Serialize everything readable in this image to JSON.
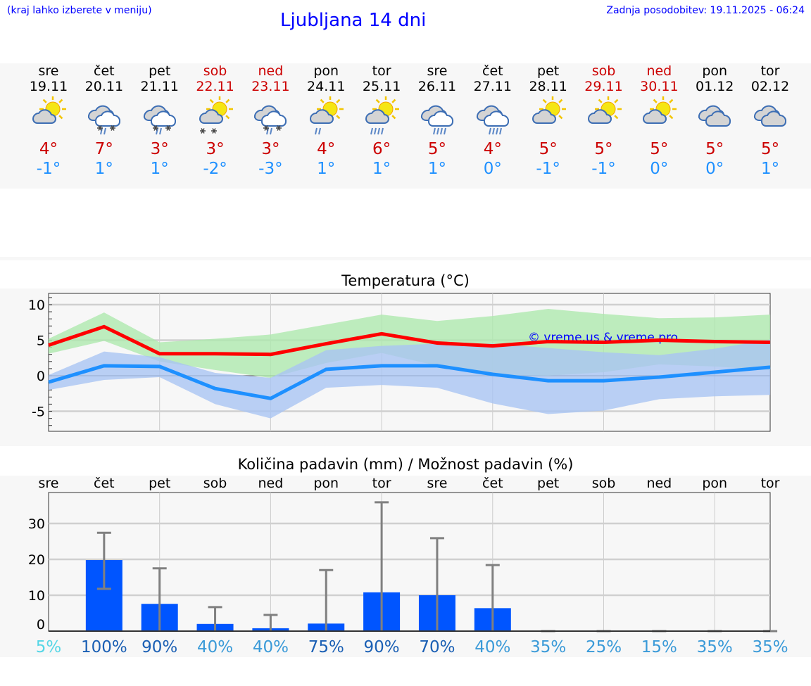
{
  "header": {
    "note": "(kraj lahko izberete v meniju)",
    "title": "Ljubljana 14 dni",
    "updated": "Zadnja posodobitev: 19.11.2025 - 06:24"
  },
  "days": [
    {
      "name": "sre",
      "date": "19.11",
      "weekend": false,
      "icon": "sun-cloud",
      "max": "4°",
      "min": "-1°"
    },
    {
      "name": "čet",
      "date": "20.11",
      "weekend": false,
      "icon": "clouds-rain-snow",
      "max": "7°",
      "min": "1°"
    },
    {
      "name": "pet",
      "date": "21.11",
      "weekend": false,
      "icon": "clouds-rain-snow",
      "max": "3°",
      "min": "1°"
    },
    {
      "name": "sob",
      "date": "22.11",
      "weekend": true,
      "icon": "sun-cloud-snow",
      "max": "3°",
      "min": "-2°"
    },
    {
      "name": "ned",
      "date": "23.11",
      "weekend": true,
      "icon": "clouds-rain-snow",
      "max": "3°",
      "min": "-3°"
    },
    {
      "name": "pon",
      "date": "24.11",
      "weekend": false,
      "icon": "sun-cloud-rain",
      "max": "4°",
      "min": "1°"
    },
    {
      "name": "tor",
      "date": "25.11",
      "weekend": false,
      "icon": "sun-cloud-heavy-rain",
      "max": "6°",
      "min": "1°"
    },
    {
      "name": "sre",
      "date": "26.11",
      "weekend": false,
      "icon": "clouds-rain",
      "max": "5°",
      "min": "1°"
    },
    {
      "name": "čet",
      "date": "27.11",
      "weekend": false,
      "icon": "clouds-rain",
      "max": "4°",
      "min": "0°"
    },
    {
      "name": "pet",
      "date": "28.11",
      "weekend": false,
      "icon": "sun-cloud",
      "max": "5°",
      "min": "-1°"
    },
    {
      "name": "sob",
      "date": "29.11",
      "weekend": true,
      "icon": "sun-cloud",
      "max": "5°",
      "min": "-1°"
    },
    {
      "name": "ned",
      "date": "30.11",
      "weekend": true,
      "icon": "sun-cloud",
      "max": "5°",
      "min": "0°"
    },
    {
      "name": "pon",
      "date": "01.12",
      "weekend": false,
      "icon": "clouds",
      "max": "5°",
      "min": "0°"
    },
    {
      "name": "tor",
      "date": "02.12",
      "weekend": false,
      "icon": "clouds",
      "max": "5°",
      "min": "1°"
    }
  ],
  "colors": {
    "max": "#ff0000",
    "min": "#1e90ff",
    "max_band": "#aee8ae",
    "min_band": "#a9c4f2",
    "bar": "#0055ff",
    "error": "#808080"
  },
  "chart_data": [
    {
      "type": "line",
      "title": "Temperatura (°C)",
      "ylim": [
        -7.8,
        11.6
      ],
      "yticks": [
        "10",
        "5",
        "0",
        "-5"
      ],
      "ytick_values": [
        10,
        5,
        0,
        -5
      ],
      "watermark": "© vreme.us & vreme.pro",
      "series": [
        {
          "name": "max",
          "values": [
            4.3,
            6.9,
            3.1,
            3.1,
            3.0,
            4.5,
            5.9,
            4.6,
            4.2,
            4.8,
            4.7,
            5.0,
            4.8,
            4.7
          ],
          "band_low": [
            3.1,
            4.9,
            2.0,
            0.8,
            -0.3,
            1.8,
            3.2,
            1.4,
            0.1,
            0.0,
            0.5,
            1.6,
            1.3,
            0.8
          ],
          "band_high": [
            5.2,
            8.9,
            4.7,
            5.2,
            5.8,
            7.2,
            8.6,
            7.7,
            8.4,
            9.4,
            8.7,
            8.1,
            8.2,
            8.6
          ]
        },
        {
          "name": "min",
          "values": [
            -0.9,
            1.4,
            1.3,
            -1.8,
            -3.2,
            0.9,
            1.4,
            1.4,
            0.2,
            -0.7,
            -0.7,
            -0.2,
            0.5,
            1.2
          ],
          "band_low": [
            -2.0,
            -0.6,
            -0.2,
            -4.0,
            -6.0,
            -1.7,
            -1.3,
            -1.7,
            -3.9,
            -5.4,
            -4.9,
            -3.3,
            -2.9,
            -2.7
          ],
          "band_high": [
            0.1,
            3.4,
            2.6,
            0.4,
            -0.3,
            3.6,
            4.2,
            4.5,
            4.5,
            3.9,
            3.3,
            2.9,
            3.8,
            5.1
          ]
        }
      ]
    },
    {
      "type": "bar",
      "title": "Količina padavin (mm) / Možnost padavin (%)",
      "ylim": [
        0,
        38.6
      ],
      "yticks": [
        "30",
        "20",
        "10",
        "0"
      ],
      "ytick_values": [
        30,
        20,
        10,
        0
      ],
      "categories": [
        "sre",
        "čet",
        "pet",
        "sob",
        "ned",
        "pon",
        "tor",
        "sre",
        "čet",
        "pet",
        "sob",
        "ned",
        "pon",
        "tor"
      ],
      "values": [
        0,
        19.8,
        7.6,
        2.0,
        0.8,
        2.1,
        10.8,
        10.0,
        6.4,
        0,
        0,
        0,
        0,
        0
      ],
      "err_low": [
        0,
        11.8,
        0,
        0,
        0,
        0,
        0,
        0,
        0,
        0,
        0,
        0,
        0,
        0
      ],
      "err_high": [
        0,
        27.4,
        17.5,
        6.7,
        4.5,
        17.0,
        35.9,
        25.9,
        18.4,
        0,
        0,
        0,
        0,
        0
      ],
      "probability": [
        "5%",
        "100%",
        "90%",
        "40%",
        "40%",
        "75%",
        "90%",
        "70%",
        "40%",
        "35%",
        "25%",
        "15%",
        "35%",
        "35%"
      ],
      "probability_colors": [
        "#55d6e6",
        "#1a5fb4",
        "#1a5fb4",
        "#3a9ad8",
        "#3a9ad8",
        "#1a5fb4",
        "#1a5fb4",
        "#1a5fb4",
        "#3a9ad8",
        "#3a9ad8",
        "#3a9ad8",
        "#3a9ad8",
        "#3a9ad8",
        "#3a9ad8"
      ]
    }
  ]
}
